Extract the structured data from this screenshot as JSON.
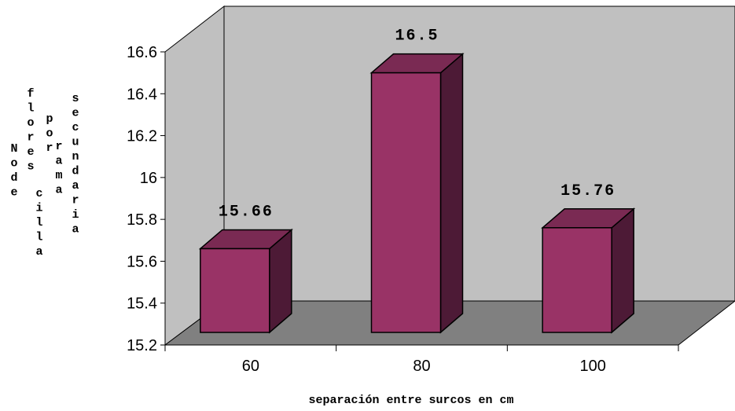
{
  "chart_data": {
    "type": "bar",
    "categories": [
      "60",
      "80",
      "100"
    ],
    "values": [
      15.66,
      16.5,
      15.76
    ],
    "data_labels": [
      "15.66",
      "16.5",
      "15.76"
    ],
    "ylim": [
      15.2,
      16.6
    ],
    "yticks": [
      "15.2",
      "15.4",
      "15.6",
      "15.8",
      "16",
      "16.2",
      "16.4",
      "16.6"
    ],
    "xlabel": "separación entre surcos en cm",
    "ylabel_columns": [
      "No de",
      "flores",
      "por",
      "cilla",
      "rama",
      "secundaria"
    ],
    "legend": false,
    "three_d": true,
    "colors": {
      "bar_front": "#993366",
      "bar_top": "#7a2a53",
      "bar_side": "#4d1a36",
      "wall": "#c0c0c0",
      "floor": "#808080",
      "stroke": "#000000"
    }
  }
}
